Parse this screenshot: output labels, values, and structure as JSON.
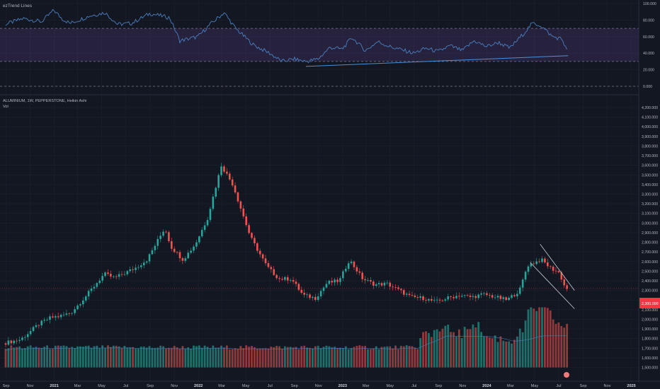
{
  "window": {
    "title": "ALUMINIUM, 1W, PEPPERSTONE, Heikin Ashi"
  },
  "colors": {
    "background": "#131722",
    "grid": "#1e222d",
    "text": "#b2b5be",
    "bull": "#26a69a",
    "bear": "#ef5350",
    "bull_volume": "#1f6f6a",
    "bear_volume": "#8f3b3d",
    "rsi_line": "#4a7fc1",
    "rsi_band": "#7e57c2",
    "trendline": "#4a90d9",
    "price_marker": "#f23645"
  },
  "rsi_pane": {
    "title": "ezTrend Lines",
    "y_ticks": [
      "100.000",
      "80.000",
      "60.000",
      "40.000",
      "20.000",
      "0.000"
    ],
    "levels": [
      70,
      30,
      0
    ],
    "band": [
      30,
      70
    ]
  },
  "price_pane": {
    "symbol_line": "ALUMINIUM, 1W, PEPPERSTONE, Heikin Ashi",
    "volume_label": "Vol",
    "y_ticks": [
      "4,200.000",
      "4,100.000",
      "4,000.000",
      "3,900.000",
      "3,800.000",
      "3,700.000",
      "3,600.000",
      "3,500.000",
      "3,400.000",
      "3,300.000",
      "3,200.000",
      "3,100.000",
      "3,000.000",
      "2,900.000",
      "2,800.000",
      "2,700.000",
      "2,600.000",
      "2,500.000",
      "2,400.000",
      "2,300.000",
      "2,200.000",
      "2,100.000",
      "2,000.000",
      "1,900.000",
      "1,800.000",
      "1,700.000",
      "1,600.000",
      "1,500.000"
    ],
    "last_price_tag": "2,300.000"
  },
  "x_axis": {
    "labels": [
      "Sep",
      "Nov",
      "2021",
      "Mar",
      "May",
      "Jul",
      "Sep",
      "Nov",
      "2022",
      "Mar",
      "May",
      "Jul",
      "Sep",
      "Nov",
      "2023",
      "Mar",
      "May",
      "Jul",
      "Sep",
      "Nov",
      "2024",
      "Mar",
      "May",
      "Jul",
      "Sep",
      "Nov",
      "2025"
    ]
  },
  "chart_data": {
    "type": "candlestick",
    "title": "ALUMINIUM, 1W, PEPPERSTONE, Heikin Ashi",
    "interval": "1W",
    "x_range": [
      "2020-09",
      "2025-01"
    ],
    "price_range": [
      1500,
      4200
    ],
    "price_path": [
      [
        "2020-08-31",
        1750
      ],
      [
        "2020-10-15",
        1790
      ],
      [
        "2020-11-30",
        1950
      ],
      [
        "2020-12-31",
        2020
      ],
      [
        "2021-01-20",
        2030
      ],
      [
        "2021-02-20",
        2070
      ],
      [
        "2021-03-31",
        2250
      ],
      [
        "2021-04-30",
        2400
      ],
      [
        "2021-05-15",
        2470
      ],
      [
        "2021-06-10",
        2430
      ],
      [
        "2021-07-31",
        2530
      ],
      [
        "2021-08-31",
        2620
      ],
      [
        "2021-10-15",
        2950
      ],
      [
        "2021-10-31",
        2750
      ],
      [
        "2021-11-30",
        2620
      ],
      [
        "2021-12-31",
        2780
      ],
      [
        "2022-01-31",
        3050
      ],
      [
        "2022-03-07",
        3600
      ],
      [
        "2022-04-05",
        3400
      ],
      [
        "2022-05-20",
        2850
      ],
      [
        "2022-06-30",
        2550
      ],
      [
        "2022-07-31",
        2420
      ],
      [
        "2022-08-31",
        2420
      ],
      [
        "2022-09-30",
        2250
      ],
      [
        "2022-10-31",
        2220
      ],
      [
        "2022-11-30",
        2380
      ],
      [
        "2022-12-31",
        2400
      ],
      [
        "2023-01-25",
        2620
      ],
      [
        "2023-02-28",
        2420
      ],
      [
        "2023-03-31",
        2360
      ],
      [
        "2023-04-30",
        2370
      ],
      [
        "2023-05-31",
        2300
      ],
      [
        "2023-06-30",
        2230
      ],
      [
        "2023-07-31",
        2220
      ],
      [
        "2023-08-31",
        2180
      ],
      [
        "2023-09-30",
        2220
      ],
      [
        "2023-10-31",
        2250
      ],
      [
        "2023-11-30",
        2230
      ],
      [
        "2023-12-31",
        2260
      ],
      [
        "2024-01-31",
        2230
      ],
      [
        "2024-02-28",
        2200
      ],
      [
        "2024-03-31",
        2300
      ],
      [
        "2024-04-20",
        2560
      ],
      [
        "2024-05-25",
        2620
      ],
      [
        "2024-06-15",
        2540
      ],
      [
        "2024-07-10",
        2480
      ],
      [
        "2024-07-25",
        2320
      ]
    ],
    "rsi_path": [
      [
        "2020-08-31",
        75
      ],
      [
        "2020-10-15",
        82
      ],
      [
        "2020-11-30",
        78
      ],
      [
        "2020-12-31",
        92
      ],
      [
        "2021-01-20",
        82
      ],
      [
        "2021-02-10",
        76
      ],
      [
        "2021-03-31",
        85
      ],
      [
        "2021-05-10",
        89
      ],
      [
        "2021-06-10",
        75
      ],
      [
        "2021-07-15",
        76
      ],
      [
        "2021-08-31",
        88
      ],
      [
        "2021-10-20",
        83
      ],
      [
        "2021-11-15",
        55
      ],
      [
        "2021-12-31",
        60
      ],
      [
        "2022-01-31",
        75
      ],
      [
        "2022-03-07",
        89
      ],
      [
        "2022-04-05",
        70
      ],
      [
        "2022-05-20",
        50
      ],
      [
        "2022-06-30",
        40
      ],
      [
        "2022-07-31",
        30
      ],
      [
        "2022-08-31",
        33
      ],
      [
        "2022-09-30",
        30
      ],
      [
        "2022-10-31",
        33
      ],
      [
        "2022-11-30",
        47
      ],
      [
        "2022-12-31",
        45
      ],
      [
        "2023-01-25",
        59
      ],
      [
        "2023-02-28",
        43
      ],
      [
        "2023-03-31",
        54
      ],
      [
        "2023-04-30",
        48
      ],
      [
        "2023-05-31",
        44
      ],
      [
        "2023-06-30",
        40
      ],
      [
        "2023-07-31",
        46
      ],
      [
        "2023-08-31",
        42
      ],
      [
        "2023-09-30",
        49
      ],
      [
        "2023-10-31",
        43
      ],
      [
        "2023-11-30",
        55
      ],
      [
        "2023-12-31",
        48
      ],
      [
        "2024-01-31",
        53
      ],
      [
        "2024-02-28",
        46
      ],
      [
        "2024-03-31",
        62
      ],
      [
        "2024-04-25",
        76
      ],
      [
        "2024-05-15",
        74
      ],
      [
        "2024-06-15",
        60
      ],
      [
        "2024-07-10",
        57
      ],
      [
        "2024-07-25",
        39
      ]
    ],
    "rsi_trendline": [
      [
        "2022-09-30",
        24
      ],
      [
        "2024-07-25",
        37
      ]
    ],
    "price_channel": {
      "upper": [
        [
          "2024-05-15",
          2780
        ],
        [
          "2024-08-10",
          2300
        ]
      ],
      "lower": [
        [
          "2024-04-20",
          2590
        ],
        [
          "2024-08-10",
          2110
        ]
      ]
    },
    "volume": {
      "baseline_until": "2023-07-15",
      "recent_heights": [
        [
          "2023-07-20",
          0.48
        ],
        [
          "2023-08-15",
          0.6
        ],
        [
          "2023-09-30",
          0.63
        ],
        [
          "2023-10-31",
          0.54
        ],
        [
          "2023-11-30",
          0.78
        ],
        [
          "2023-12-31",
          0.5
        ],
        [
          "2024-01-31",
          0.49
        ],
        [
          "2024-02-28",
          0.44
        ],
        [
          "2024-03-31",
          0.6
        ],
        [
          "2024-04-20",
          0.97
        ],
        [
          "2024-05-25",
          1.0
        ],
        [
          "2024-06-30",
          0.72
        ],
        [
          "2024-07-25",
          0.64
        ]
      ]
    }
  }
}
